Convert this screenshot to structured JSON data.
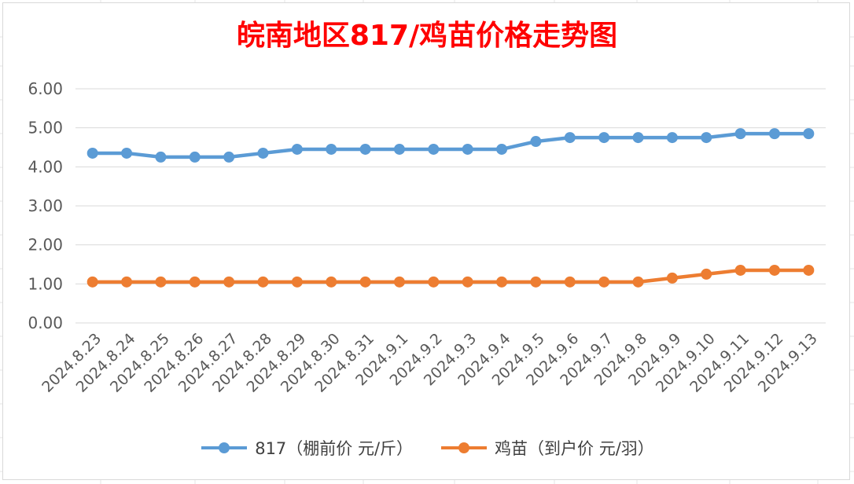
{
  "chart_data": {
    "type": "line",
    "title": "皖南地区817/鸡苗价格走势图",
    "title_color": "#ff0000",
    "categories": [
      "2024.8.23",
      "2024.8.24",
      "2024.8.25",
      "2024.8.26",
      "2024.8.27",
      "2024.8.28",
      "2024.8.29",
      "2024.8.30",
      "2024.8.31",
      "2024.9.1",
      "2024.9.2",
      "2024.9.3",
      "2024.9.4",
      "2024.9.5",
      "2024.9.6",
      "2024.9.7",
      "2024.9.8",
      "2024.9.9",
      "2024.9.10",
      "2024.9.11",
      "2024.9.12",
      "2024.9.13"
    ],
    "series": [
      {
        "name": "817（棚前价 元/斤）",
        "color": "#5b9bd5",
        "values": [
          4.35,
          4.35,
          4.25,
          4.25,
          4.25,
          4.35,
          4.45,
          4.45,
          4.45,
          4.45,
          4.45,
          4.45,
          4.45,
          4.65,
          4.75,
          4.75,
          4.75,
          4.75,
          4.75,
          4.85,
          4.85,
          4.85
        ]
      },
      {
        "name": "鸡苗（到户价 元/羽）",
        "color": "#ed7d31",
        "values": [
          1.05,
          1.05,
          1.05,
          1.05,
          1.05,
          1.05,
          1.05,
          1.05,
          1.05,
          1.05,
          1.05,
          1.05,
          1.05,
          1.05,
          1.05,
          1.05,
          1.05,
          1.15,
          1.25,
          1.35,
          1.35,
          1.35
        ]
      }
    ],
    "yticks": [
      "0.00",
      "1.00",
      "2.00",
      "3.00",
      "4.00",
      "5.00",
      "6.00"
    ],
    "ylim": [
      0,
      6
    ],
    "grid": true,
    "legend_position": "bottom"
  }
}
